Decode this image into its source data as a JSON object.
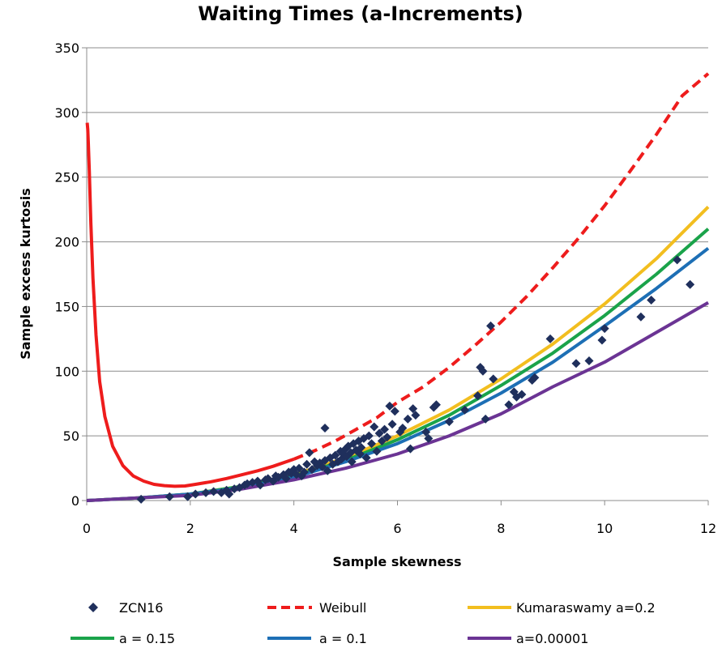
{
  "chart_data": {
    "type": "scatter",
    "title": "Waiting Times (a-Increments)",
    "xlabel": "Sample skewness",
    "ylabel": "Sample excess kurtosis",
    "xlim": [
      0,
      12
    ],
    "ylim": [
      0,
      350
    ],
    "x_ticks": [
      "0",
      "2",
      "4",
      "6",
      "8",
      "10",
      "12"
    ],
    "y_ticks": [
      "0",
      "50",
      "100",
      "150",
      "200",
      "250",
      "300",
      "350"
    ],
    "grid": "horizontal",
    "legend_position": "bottom",
    "scatter": {
      "name": "ZCN16",
      "color": "#1f2f5c",
      "marker": "diamond",
      "points": [
        [
          1.05,
          1
        ],
        [
          1.6,
          3
        ],
        [
          1.95,
          3
        ],
        [
          2.1,
          5
        ],
        [
          2.3,
          6
        ],
        [
          2.45,
          7
        ],
        [
          2.6,
          6
        ],
        [
          2.7,
          8
        ],
        [
          2.75,
          5
        ],
        [
          2.85,
          9
        ],
        [
          2.95,
          10
        ],
        [
          3.05,
          12
        ],
        [
          3.1,
          13
        ],
        [
          3.2,
          14
        ],
        [
          3.3,
          15
        ],
        [
          3.35,
          12
        ],
        [
          3.45,
          16
        ],
        [
          3.5,
          17
        ],
        [
          3.6,
          15
        ],
        [
          3.65,
          19
        ],
        [
          3.7,
          18
        ],
        [
          3.8,
          20
        ],
        [
          3.85,
          17
        ],
        [
          3.9,
          22
        ],
        [
          3.95,
          21
        ],
        [
          4.0,
          24
        ],
        [
          4.05,
          20
        ],
        [
          4.1,
          25
        ],
        [
          4.15,
          19
        ],
        [
          4.2,
          22
        ],
        [
          4.25,
          28
        ],
        [
          4.3,
          37
        ],
        [
          4.35,
          24
        ],
        [
          4.4,
          30
        ],
        [
          4.45,
          27
        ],
        [
          4.5,
          29
        ],
        [
          4.55,
          26
        ],
        [
          4.6,
          56
        ],
        [
          4.6,
          31
        ],
        [
          4.65,
          23
        ],
        [
          4.7,
          33
        ],
        [
          4.75,
          28
        ],
        [
          4.8,
          35
        ],
        [
          4.85,
          30
        ],
        [
          4.9,
          38
        ],
        [
          4.92,
          32
        ],
        [
          4.95,
          36
        ],
        [
          5.0,
          40
        ],
        [
          5.02,
          34
        ],
        [
          5.05,
          42
        ],
        [
          5.1,
          37
        ],
        [
          5.12,
          30
        ],
        [
          5.15,
          44
        ],
        [
          5.2,
          39
        ],
        [
          5.25,
          46
        ],
        [
          5.28,
          36
        ],
        [
          5.3,
          41
        ],
        [
          5.35,
          48
        ],
        [
          5.4,
          33
        ],
        [
          5.45,
          50
        ],
        [
          5.5,
          44
        ],
        [
          5.55,
          57
        ],
        [
          5.6,
          38
        ],
        [
          5.65,
          52
        ],
        [
          5.7,
          46
        ],
        [
          5.75,
          55
        ],
        [
          5.8,
          49
        ],
        [
          5.85,
          73
        ],
        [
          5.9,
          59
        ],
        [
          5.95,
          69
        ],
        [
          6.05,
          53
        ],
        [
          6.1,
          56
        ],
        [
          6.2,
          63
        ],
        [
          6.25,
          40
        ],
        [
          6.3,
          71
        ],
        [
          6.35,
          66
        ],
        [
          6.55,
          53
        ],
        [
          6.6,
          48
        ],
        [
          6.7,
          72
        ],
        [
          6.75,
          74
        ],
        [
          7.0,
          61
        ],
        [
          7.3,
          70
        ],
        [
          7.55,
          81
        ],
        [
          7.6,
          103
        ],
        [
          7.65,
          100
        ],
        [
          7.7,
          63
        ],
        [
          7.8,
          135
        ],
        [
          7.85,
          94
        ],
        [
          8.15,
          74
        ],
        [
          8.25,
          84
        ],
        [
          8.3,
          80
        ],
        [
          8.4,
          82
        ],
        [
          8.6,
          93
        ],
        [
          8.65,
          95
        ],
        [
          8.95,
          125
        ],
        [
          9.45,
          106
        ],
        [
          9.7,
          108
        ],
        [
          9.95,
          124
        ],
        [
          10.0,
          133
        ],
        [
          10.7,
          142
        ],
        [
          10.9,
          155
        ],
        [
          11.4,
          186
        ],
        [
          11.65,
          167
        ]
      ]
    },
    "series": [
      {
        "name": "Weibull",
        "color": "#ee1c1c",
        "style": "dashed",
        "solid_until": 4.0,
        "x": [
          0.01,
          0.02,
          0.03,
          0.05,
          0.08,
          0.12,
          0.18,
          0.25,
          0.35,
          0.5,
          0.7,
          0.9,
          1.1,
          1.3,
          1.5,
          1.7,
          1.9,
          2.1,
          2.4,
          2.7,
          3.0,
          3.3,
          3.6,
          4.0,
          4.4,
          4.8,
          5.2,
          5.6,
          6.0,
          6.5,
          7.0,
          7.5,
          8.0,
          8.5,
          9.0,
          9.5,
          10.0,
          10.5,
          11.0,
          11.5,
          12.0
        ],
        "y": [
          292,
          287,
          278,
          255,
          215,
          172,
          128,
          92,
          65,
          42,
          27,
          19,
          15,
          12.5,
          11.5,
          11,
          11.3,
          12.5,
          14.5,
          17,
          20,
          23,
          26.5,
          32,
          38.5,
          46,
          55,
          64,
          76,
          88,
          103,
          120,
          138,
          158,
          180,
          203,
          228,
          255,
          283,
          313,
          330
        ]
      },
      {
        "name": "Kumaraswamy a=0.2",
        "color": "#f2be1f",
        "style": "solid",
        "x": [
          0,
          1,
          2,
          3,
          4,
          5,
          6,
          7,
          8,
          9,
          10,
          11,
          12
        ],
        "y": [
          0,
          2,
          5,
          11,
          20,
          33,
          50,
          70,
          94,
          121,
          152,
          187,
          227
        ]
      },
      {
        "name": "a = 0.15",
        "color": "#1aa34a",
        "style": "solid",
        "x": [
          0,
          1,
          2,
          3,
          4,
          5,
          6,
          7,
          8,
          9,
          10,
          11,
          12
        ],
        "y": [
          0,
          2,
          5,
          11,
          19,
          31,
          47,
          66,
          89,
          114,
          143,
          175,
          210
        ]
      },
      {
        "name": "a = 0.1",
        "color": "#1d6fb5",
        "style": "solid",
        "x": [
          0,
          1,
          2,
          3,
          4,
          5,
          6,
          7,
          8,
          9,
          10,
          11,
          12
        ],
        "y": [
          0,
          2,
          5,
          10,
          18,
          30,
          44,
          62,
          83,
          107,
          135,
          164,
          195
        ]
      },
      {
        "name": "a=0.00001",
        "color": "#6b3494",
        "style": "solid",
        "x": [
          0,
          1,
          2,
          3,
          4,
          5,
          6,
          7,
          8,
          9,
          10,
          11,
          12
        ],
        "y": [
          0,
          2,
          4,
          9,
          16,
          25,
          36,
          50,
          67,
          88,
          107,
          130,
          153
        ]
      }
    ]
  }
}
